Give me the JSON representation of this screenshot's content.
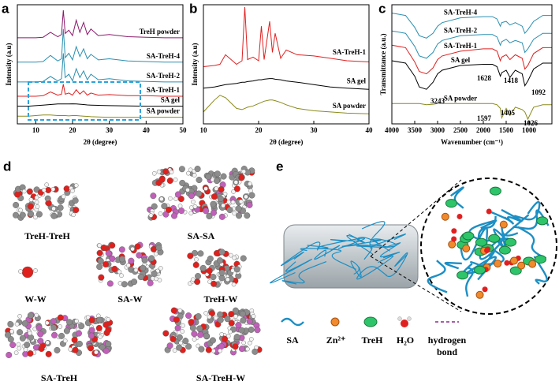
{
  "chart_data": [
    {
      "type": "line",
      "label": "a",
      "xlabel": "2θ (degree)",
      "ylabel": "Intensity (a.u)",
      "xlim": [
        5,
        50
      ],
      "xticks": [
        10,
        20,
        30,
        40,
        50
      ],
      "ylim": [
        0,
        10.8
      ],
      "x": [
        5,
        8,
        10,
        12,
        14,
        16,
        17,
        17.5,
        18,
        19,
        20,
        21,
        22,
        23,
        24,
        25,
        27,
        30,
        35,
        40,
        45,
        50
      ],
      "series": [
        {
          "name": "SA powder",
          "color": "#8a8a1c",
          "values": [
            0.7,
            0.7,
            0.75,
            0.8,
            0.8,
            0.75,
            0.75,
            0.75,
            0.75,
            0.72,
            0.75,
            0.75,
            0.72,
            0.7,
            0.68,
            0.65,
            0.62,
            0.6,
            0.6,
            0.6,
            0.6,
            0.6
          ]
        },
        {
          "name": "SA gel",
          "color": "#000000",
          "values": [
            1.6,
            1.6,
            1.65,
            1.7,
            1.75,
            1.8,
            1.8,
            1.8,
            1.8,
            1.8,
            1.82,
            1.8,
            1.78,
            1.75,
            1.72,
            1.7,
            1.68,
            1.65,
            1.62,
            1.6,
            1.6,
            1.6
          ]
        },
        {
          "name": "SA-TreH-1",
          "color": "#e02020",
          "values": [
            2.5,
            2.5,
            2.5,
            2.55,
            2.9,
            2.6,
            2.7,
            3.6,
            2.7,
            2.8,
            2.6,
            3.1,
            2.7,
            3.0,
            2.6,
            2.8,
            2.6,
            2.65,
            2.55,
            2.55,
            2.5,
            2.5
          ]
        },
        {
          "name": "SA-TreH-2",
          "color": "#2a8fb0",
          "values": [
            3.8,
            3.8,
            3.8,
            3.85,
            4.3,
            3.9,
            4.1,
            6.4,
            4.2,
            4.5,
            3.9,
            5.0,
            4.2,
            4.8,
            4.0,
            4.5,
            4.0,
            4.1,
            3.9,
            3.85,
            3.8,
            3.8
          ]
        },
        {
          "name": "SA-TreH-4",
          "color": "#2a8fb0",
          "values": [
            5.6,
            5.6,
            5.6,
            5.65,
            6.2,
            5.7,
            5.9,
            8.6,
            6.0,
            6.4,
            5.8,
            7.0,
            6.1,
            6.8,
            5.9,
            6.3,
            5.8,
            5.9,
            5.7,
            5.65,
            5.6,
            5.6
          ]
        },
        {
          "name": "TreH powder",
          "color": "#8b1a6b",
          "values": [
            7.8,
            7.8,
            7.8,
            7.85,
            8.3,
            7.9,
            8.1,
            10.3,
            8.2,
            8.5,
            8.0,
            9.4,
            8.3,
            9.2,
            8.1,
            8.6,
            8.0,
            8.1,
            7.9,
            7.85,
            7.8,
            7.8
          ]
        }
      ]
    },
    {
      "type": "line",
      "label": "b",
      "xlabel": "2θ (degree)",
      "ylabel": "Intensity (a.u)",
      "xlim": [
        10,
        40
      ],
      "xticks": [
        10,
        20,
        30,
        40
      ],
      "ylim": [
        0,
        10
      ],
      "x": [
        10,
        12,
        13,
        14,
        16,
        17,
        17.5,
        18,
        19,
        20,
        20.5,
        21,
        22,
        22.5,
        23,
        24,
        25,
        27,
        30,
        33,
        36,
        40
      ],
      "series": [
        {
          "name": "SA powder",
          "color": "#8a8a1c",
          "values": [
            1.0,
            2.0,
            2.4,
            2.2,
            1.3,
            1.2,
            1.3,
            1.4,
            1.5,
            1.7,
            1.8,
            1.9,
            2.0,
            2.0,
            1.95,
            1.8,
            1.6,
            1.3,
            1.1,
            1.0,
            0.9,
            0.85
          ]
        },
        {
          "name": "SA gel",
          "color": "#000000",
          "values": [
            3.0,
            3.1,
            3.2,
            3.3,
            3.4,
            3.5,
            3.5,
            3.55,
            3.6,
            3.7,
            3.7,
            3.75,
            3.8,
            3.8,
            3.75,
            3.7,
            3.6,
            3.5,
            3.3,
            3.1,
            3.0,
            2.9
          ]
        },
        {
          "name": "SA-TreH-1",
          "color": "#e02020",
          "values": [
            4.8,
            4.9,
            5.0,
            5.8,
            5.0,
            5.3,
            9.8,
            5.4,
            5.6,
            5.3,
            8.2,
            5.4,
            8.6,
            6.0,
            7.6,
            5.5,
            6.2,
            5.8,
            5.7,
            5.5,
            5.3,
            5.2
          ]
        }
      ]
    },
    {
      "type": "line",
      "label": "c",
      "xlabel": "Wavenumber (cm⁻¹)",
      "ylabel": "Transmittance (a.u.)",
      "xlim": [
        4000,
        500
      ],
      "xticks": [
        4000,
        3500,
        3000,
        2500,
        2000,
        1500,
        1000
      ],
      "ylim": [
        0,
        10
      ],
      "x": [
        4000,
        3700,
        3500,
        3400,
        3243,
        3100,
        3000,
        2900,
        2500,
        2000,
        1800,
        1700,
        1628,
        1597,
        1500,
        1418,
        1300,
        1150,
        1092,
        1026,
        900,
        700,
        500
      ],
      "series": [
        {
          "name": "SA powder",
          "color": "#8a8a1c",
          "values": [
            1.7,
            1.7,
            1.7,
            1.7,
            1.6,
            1.65,
            1.7,
            1.7,
            1.7,
            1.7,
            1.7,
            1.6,
            1.3,
            0.5,
            1.3,
            0.7,
            1.4,
            1.2,
            1.0,
            0.4,
            1.4,
            1.6,
            1.6
          ]
        },
        {
          "name": "SA gel",
          "color": "#000000",
          "values": [
            5.3,
            5.1,
            4.0,
            3.1,
            2.9,
            3.5,
            4.2,
            4.5,
            4.9,
            5.0,
            5.0,
            4.8,
            4.0,
            4.3,
            4.5,
            3.9,
            4.5,
            4.2,
            3.2,
            3.6,
            4.6,
            5.1,
            5.1
          ]
        },
        {
          "name": "SA-TreH-1",
          "color": "#e02020",
          "values": [
            6.6,
            6.4,
            5.2,
            4.4,
            4.2,
            4.7,
            5.4,
            5.7,
            6.1,
            6.3,
            6.3,
            6.1,
            5.3,
            5.6,
            5.8,
            5.4,
            5.8,
            5.5,
            4.6,
            4.9,
            5.9,
            6.4,
            6.4
          ]
        },
        {
          "name": "SA-TreH-2",
          "color": "#2a8fb0",
          "values": [
            7.8,
            7.6,
            6.5,
            5.7,
            5.5,
            6.0,
            6.7,
            7.0,
            7.4,
            7.5,
            7.5,
            7.3,
            6.6,
            6.9,
            7.1,
            6.8,
            7.0,
            6.8,
            6.0,
            6.3,
            7.1,
            7.6,
            7.6
          ]
        },
        {
          "name": "SA-TreH-4",
          "color": "#2a8fb0",
          "values": [
            9.3,
            9.1,
            8.1,
            7.4,
            7.2,
            7.6,
            8.2,
            8.5,
            8.9,
            9.0,
            9.0,
            8.8,
            8.2,
            8.5,
            8.6,
            8.3,
            8.5,
            8.2,
            7.6,
            7.9,
            8.6,
            9.1,
            9.1
          ]
        }
      ],
      "annotations": [
        "3243",
        "1628",
        "1418",
        "1092",
        "1597",
        "1405",
        "1026"
      ]
    }
  ],
  "panel_d": {
    "label": "d",
    "systems": [
      "TreH-TreH",
      "SA-SA",
      "W-W",
      "SA-W",
      "TreH-W",
      "SA-TreH",
      "SA-TreH-W"
    ]
  },
  "panel_e": {
    "label": "e",
    "legend": [
      {
        "label_lines": [
          "SA"
        ]
      },
      {
        "label_lines": [
          "Zn²⁺"
        ]
      },
      {
        "label_lines": [
          "TreH"
        ]
      },
      {
        "label_lines": [
          "H₂O"
        ]
      },
      {
        "label_lines": [
          "hydrogen",
          "bond"
        ]
      }
    ]
  }
}
